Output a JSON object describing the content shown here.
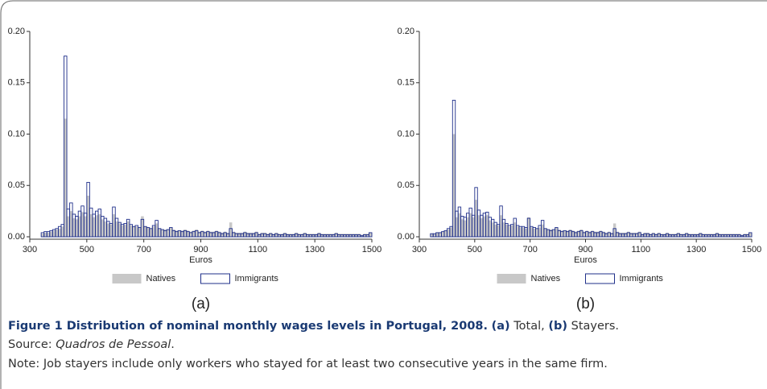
{
  "chart_data": [
    {
      "type": "histogram",
      "panel_label": "(a)",
      "xlabel": "Euros",
      "xlim": [
        300,
        1500
      ],
      "xticks": [
        300,
        500,
        700,
        900,
        1100,
        1300,
        1500
      ],
      "ylim": [
        0,
        0.2
      ],
      "yticks": [
        {
          "value": 0,
          "label": "0.00"
        },
        {
          "value": 0.05,
          "label": "0.05"
        },
        {
          "value": 0.1,
          "label": "0.10"
        },
        {
          "value": 0.15,
          "label": "0.15"
        },
        {
          "value": 0.2,
          "label": "0.20"
        }
      ],
      "bins": [
        340,
        350,
        360,
        370,
        380,
        390,
        400,
        410,
        420,
        430,
        440,
        450,
        460,
        470,
        480,
        490,
        500,
        510,
        520,
        530,
        540,
        550,
        560,
        570,
        580,
        590,
        600,
        610,
        620,
        630,
        640,
        650,
        660,
        670,
        680,
        690,
        700,
        710,
        720,
        730,
        740,
        750,
        760,
        770,
        780,
        790,
        800,
        810,
        820,
        830,
        840,
        850,
        860,
        870,
        880,
        890,
        900,
        910,
        920,
        930,
        940,
        950,
        960,
        970,
        980,
        990,
        1000,
        1010,
        1020,
        1030,
        1040,
        1050,
        1060,
        1070,
        1080,
        1090,
        1100,
        1110,
        1120,
        1130,
        1140,
        1150,
        1160,
        1170,
        1180,
        1190,
        1200,
        1210,
        1220,
        1230,
        1240,
        1250,
        1260,
        1270,
        1280,
        1290,
        1300,
        1310,
        1320,
        1330,
        1340,
        1350,
        1360,
        1370,
        1380,
        1390,
        1400,
        1410,
        1420,
        1430,
        1440,
        1450,
        1460,
        1470,
        1480,
        1490,
        1500
      ],
      "series": [
        {
          "name": "Natives",
          "color": "#c8c8c8",
          "style": "filled",
          "values": [
            0.003,
            0.004,
            0.004,
            0.005,
            0.006,
            0.007,
            0.008,
            0.01,
            0.115,
            0.02,
            0.025,
            0.018,
            0.017,
            0.02,
            0.024,
            0.02,
            0.04,
            0.022,
            0.019,
            0.021,
            0.022,
            0.017,
            0.015,
            0.013,
            0.012,
            0.022,
            0.015,
            0.013,
            0.011,
            0.012,
            0.015,
            0.011,
            0.01,
            0.01,
            0.009,
            0.02,
            0.01,
            0.009,
            0.008,
            0.01,
            0.013,
            0.008,
            0.007,
            0.007,
            0.007,
            0.009,
            0.007,
            0.006,
            0.006,
            0.006,
            0.007,
            0.006,
            0.005,
            0.006,
            0.007,
            0.005,
            0.006,
            0.005,
            0.006,
            0.005,
            0.005,
            0.006,
            0.005,
            0.004,
            0.005,
            0.004,
            0.014,
            0.005,
            0.004,
            0.004,
            0.004,
            0.005,
            0.004,
            0.004,
            0.004,
            0.005,
            0.003,
            0.004,
            0.004,
            0.003,
            0.004,
            0.003,
            0.004,
            0.003,
            0.003,
            0.004,
            0.003,
            0.003,
            0.003,
            0.004,
            0.003,
            0.003,
            0.004,
            0.003,
            0.003,
            0.003,
            0.003,
            0.004,
            0.003,
            0.003,
            0.003,
            0.003,
            0.003,
            0.004,
            0.003,
            0.003,
            0.003,
            0.003,
            0.003,
            0.003,
            0.003,
            0.003,
            0.002,
            0.003,
            0.003,
            0.004
          ]
        },
        {
          "name": "Immigrants",
          "color": "#1f2f8a",
          "style": "outline",
          "values": [
            0.004,
            0.005,
            0.005,
            0.006,
            0.007,
            0.008,
            0.01,
            0.012,
            0.176,
            0.027,
            0.033,
            0.022,
            0.02,
            0.025,
            0.03,
            0.023,
            0.053,
            0.028,
            0.022,
            0.025,
            0.027,
            0.02,
            0.018,
            0.015,
            0.013,
            0.029,
            0.018,
            0.014,
            0.012,
            0.013,
            0.017,
            0.012,
            0.01,
            0.011,
            0.009,
            0.017,
            0.01,
            0.009,
            0.008,
            0.011,
            0.016,
            0.008,
            0.007,
            0.006,
            0.007,
            0.009,
            0.006,
            0.005,
            0.006,
            0.005,
            0.006,
            0.005,
            0.004,
            0.005,
            0.006,
            0.004,
            0.005,
            0.004,
            0.005,
            0.004,
            0.004,
            0.005,
            0.004,
            0.003,
            0.004,
            0.003,
            0.008,
            0.004,
            0.003,
            0.003,
            0.003,
            0.004,
            0.003,
            0.003,
            0.003,
            0.004,
            0.002,
            0.003,
            0.003,
            0.002,
            0.003,
            0.002,
            0.003,
            0.002,
            0.002,
            0.003,
            0.002,
            0.002,
            0.002,
            0.003,
            0.002,
            0.002,
            0.003,
            0.002,
            0.002,
            0.002,
            0.002,
            0.003,
            0.002,
            0.002,
            0.002,
            0.002,
            0.002,
            0.003,
            0.002,
            0.002,
            0.002,
            0.002,
            0.002,
            0.002,
            0.002,
            0.002,
            0.001,
            0.002,
            0.002,
            0.004
          ]
        }
      ]
    },
    {
      "type": "histogram",
      "panel_label": "(b)",
      "xlabel": "Euros",
      "xlim": [
        300,
        1500
      ],
      "xticks": [
        300,
        500,
        700,
        900,
        1100,
        1300,
        1500
      ],
      "ylim": [
        0,
        0.2
      ],
      "yticks": [
        {
          "value": 0,
          "label": "0.00"
        },
        {
          "value": 0.05,
          "label": "0.05"
        },
        {
          "value": 0.1,
          "label": "0.10"
        },
        {
          "value": 0.15,
          "label": "0.15"
        },
        {
          "value": 0.2,
          "label": "0.20"
        }
      ],
      "bins": [
        340,
        350,
        360,
        370,
        380,
        390,
        400,
        410,
        420,
        430,
        440,
        450,
        460,
        470,
        480,
        490,
        500,
        510,
        520,
        530,
        540,
        550,
        560,
        570,
        580,
        590,
        600,
        610,
        620,
        630,
        640,
        650,
        660,
        670,
        680,
        690,
        700,
        710,
        720,
        730,
        740,
        750,
        760,
        770,
        780,
        790,
        800,
        810,
        820,
        830,
        840,
        850,
        860,
        870,
        880,
        890,
        900,
        910,
        920,
        930,
        940,
        950,
        960,
        970,
        980,
        990,
        1000,
        1010,
        1020,
        1030,
        1040,
        1050,
        1060,
        1070,
        1080,
        1090,
        1100,
        1110,
        1120,
        1130,
        1140,
        1150,
        1160,
        1170,
        1180,
        1190,
        1200,
        1210,
        1220,
        1230,
        1240,
        1250,
        1260,
        1270,
        1280,
        1290,
        1300,
        1310,
        1320,
        1330,
        1340,
        1350,
        1360,
        1370,
        1380,
        1390,
        1400,
        1410,
        1420,
        1430,
        1440,
        1450,
        1460,
        1470,
        1480,
        1490,
        1500
      ],
      "series": [
        {
          "name": "Natives",
          "color": "#c8c8c8",
          "style": "filled",
          "values": [
            0.003,
            0.003,
            0.004,
            0.004,
            0.005,
            0.006,
            0.007,
            0.009,
            0.1,
            0.019,
            0.023,
            0.017,
            0.016,
            0.019,
            0.023,
            0.019,
            0.036,
            0.021,
            0.018,
            0.02,
            0.021,
            0.016,
            0.014,
            0.012,
            0.011,
            0.021,
            0.014,
            0.012,
            0.01,
            0.011,
            0.014,
            0.01,
            0.009,
            0.009,
            0.008,
            0.019,
            0.009,
            0.008,
            0.008,
            0.009,
            0.012,
            0.008,
            0.007,
            0.007,
            0.007,
            0.009,
            0.007,
            0.006,
            0.006,
            0.006,
            0.007,
            0.006,
            0.005,
            0.006,
            0.007,
            0.005,
            0.006,
            0.005,
            0.006,
            0.005,
            0.005,
            0.006,
            0.005,
            0.004,
            0.005,
            0.004,
            0.013,
            0.005,
            0.004,
            0.004,
            0.004,
            0.005,
            0.004,
            0.004,
            0.004,
            0.005,
            0.003,
            0.004,
            0.004,
            0.003,
            0.004,
            0.003,
            0.004,
            0.003,
            0.003,
            0.004,
            0.003,
            0.003,
            0.003,
            0.004,
            0.003,
            0.003,
            0.004,
            0.003,
            0.003,
            0.003,
            0.003,
            0.004,
            0.003,
            0.003,
            0.003,
            0.003,
            0.003,
            0.004,
            0.003,
            0.003,
            0.003,
            0.003,
            0.003,
            0.003,
            0.003,
            0.003,
            0.002,
            0.003,
            0.003,
            0.004
          ]
        },
        {
          "name": "Immigrants",
          "color": "#1f2f8a",
          "style": "outline",
          "values": [
            0.003,
            0.003,
            0.004,
            0.004,
            0.005,
            0.006,
            0.008,
            0.01,
            0.133,
            0.025,
            0.029,
            0.02,
            0.019,
            0.023,
            0.028,
            0.021,
            0.048,
            0.026,
            0.021,
            0.023,
            0.024,
            0.019,
            0.017,
            0.014,
            0.012,
            0.03,
            0.017,
            0.013,
            0.011,
            0.012,
            0.018,
            0.011,
            0.01,
            0.01,
            0.009,
            0.018,
            0.01,
            0.009,
            0.008,
            0.011,
            0.016,
            0.008,
            0.007,
            0.006,
            0.007,
            0.009,
            0.006,
            0.005,
            0.006,
            0.005,
            0.006,
            0.005,
            0.004,
            0.005,
            0.006,
            0.004,
            0.005,
            0.004,
            0.005,
            0.004,
            0.004,
            0.005,
            0.004,
            0.003,
            0.004,
            0.003,
            0.008,
            0.004,
            0.003,
            0.003,
            0.003,
            0.004,
            0.003,
            0.003,
            0.003,
            0.004,
            0.002,
            0.003,
            0.003,
            0.002,
            0.003,
            0.002,
            0.003,
            0.002,
            0.002,
            0.003,
            0.002,
            0.002,
            0.002,
            0.003,
            0.002,
            0.002,
            0.003,
            0.002,
            0.002,
            0.002,
            0.002,
            0.003,
            0.002,
            0.002,
            0.002,
            0.002,
            0.002,
            0.003,
            0.002,
            0.002,
            0.002,
            0.002,
            0.002,
            0.002,
            0.002,
            0.002,
            0.001,
            0.002,
            0.002,
            0.004
          ]
        }
      ]
    }
  ],
  "caption": {
    "title": "Figure 1 Distribution of nominal monthly wages levels in Portugal, 2008.",
    "a_label": "(a)",
    "a_text": "Total,",
    "b_label": "(b)",
    "b_text": "Stayers.",
    "source_label": "Source:",
    "source_title": "Quadros de Pessoal",
    "source_end": ".",
    "note": "Note: Job stayers include only workers who stayed for at least two consecutive years in the same firm."
  }
}
